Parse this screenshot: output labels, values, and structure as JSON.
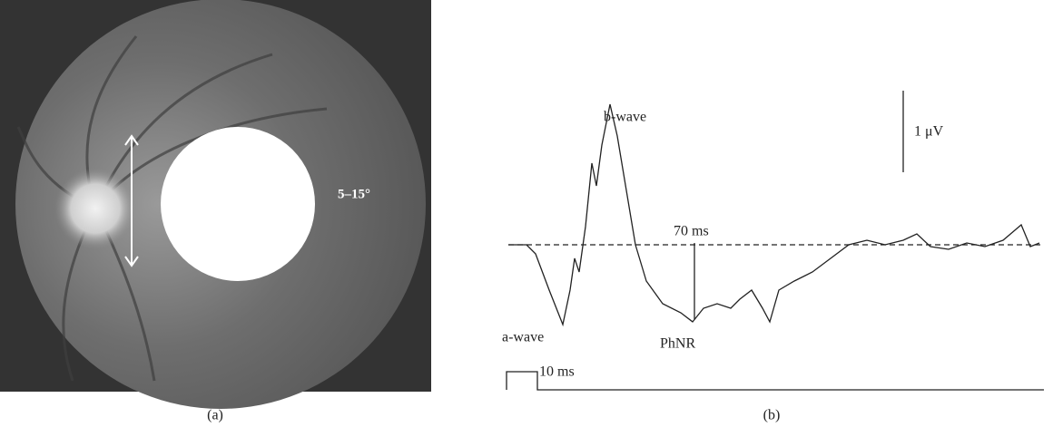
{
  "panel_a": {
    "label": "(a)",
    "angle_annotation": "5–15°"
  },
  "panel_b": {
    "label": "(b)",
    "b_wave": "b-wave",
    "a_wave": "a-wave",
    "phnr": "PhNR",
    "time_marker": "70 ms",
    "amplitude_scale": "1 μV",
    "stimulus_duration": "10 ms"
  }
}
